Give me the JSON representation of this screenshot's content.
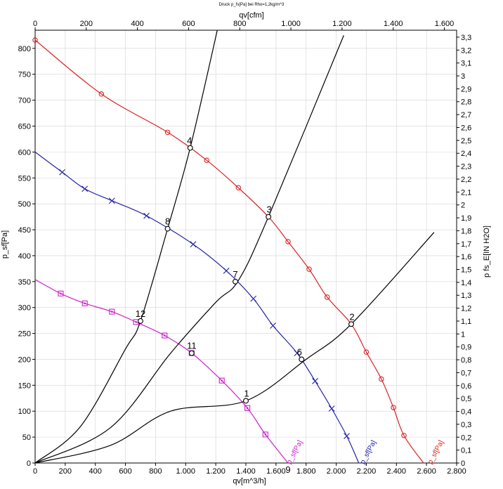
{
  "chart_data": {
    "type": "line",
    "title": "Druck p_fs[Pa] bei Rho=1,2kg/m^3",
    "x_bottom": {
      "label": "qv[m^3/h]",
      "range": [
        0,
        2800
      ],
      "ticks": [
        0,
        200,
        400,
        600,
        800,
        1000,
        1200,
        1400,
        1600,
        1800,
        2000,
        2200,
        2400,
        2600,
        2800
      ],
      "tick_labels": [
        "0",
        "200",
        "400",
        "600",
        "800",
        "1.000",
        "1.200",
        "1.400",
        "1.600",
        "1.800",
        "2.000",
        "2.200",
        "2.400",
        "2.600",
        "2.800"
      ]
    },
    "x_top": {
      "label": "qv[cfm]",
      "range": [
        0,
        1648
      ],
      "ticks": [
        0,
        200,
        400,
        600,
        800,
        1000,
        1200,
        1400,
        1600
      ],
      "tick_labels": [
        "0",
        "200",
        "400",
        "600",
        "800",
        "1.000",
        "1.200",
        "1.400",
        "1.600"
      ]
    },
    "y_left": {
      "label": "p_sf[Pa]",
      "range": [
        0,
        835
      ],
      "ticks": [
        0,
        50,
        100,
        150,
        200,
        250,
        300,
        350,
        400,
        450,
        500,
        550,
        600,
        650,
        700,
        750,
        800
      ],
      "tick_labels": [
        "0",
        "50",
        "100",
        "150",
        "200",
        "250",
        "300",
        "350",
        "400",
        "450",
        "500",
        "550",
        "600",
        "650",
        "700",
        "750",
        "800"
      ]
    },
    "y_right": {
      "label": "p fs_E[IN H2O]",
      "range": [
        0,
        3.354
      ],
      "ticks": [
        0,
        0.1,
        0.2,
        0.3,
        0.4,
        0.5,
        0.6,
        0.7,
        0.8,
        0.9,
        1.0,
        1.1,
        1.2,
        1.3,
        1.4,
        1.5,
        1.6,
        1.7,
        1.8,
        1.9,
        2.0,
        2.1,
        2.2,
        2.3,
        2.4,
        2.5,
        2.6,
        2.7,
        2.8,
        2.9,
        3.0,
        3.1,
        3.2,
        3.3
      ],
      "tick_labels": [
        "0",
        "0,1",
        "0,2",
        "0,3",
        "0,4",
        "0,5",
        "0,6",
        "0,7",
        "0,8",
        "0,9",
        "1",
        "1,1",
        "1,2",
        "1,3",
        "1,4",
        "1,5",
        "1,6",
        "1,7",
        "1,8",
        "1,9",
        "2",
        "2,1",
        "2,2",
        "2,3",
        "2,4",
        "2,5",
        "2,6",
        "2,7",
        "2,8",
        "2,9",
        "3",
        "3,1",
        "3,2",
        "3,3"
      ]
    },
    "grid": true,
    "series": [
      {
        "name": "p_sf[Pa]",
        "color": "#dd2222",
        "marker": "circle",
        "label_text": "p_sf[Pa]",
        "points": [
          [
            0,
            816
          ],
          [
            440,
            712
          ],
          [
            880,
            638
          ],
          [
            1140,
            584
          ],
          [
            1350,
            531
          ],
          [
            1550,
            475
          ],
          [
            1680,
            427
          ],
          [
            1820,
            374
          ],
          [
            1940,
            320
          ],
          [
            2100,
            268
          ],
          [
            2200,
            214
          ],
          [
            2300,
            162
          ],
          [
            2380,
            107
          ],
          [
            2450,
            53
          ],
          [
            2580,
            0
          ]
        ]
      },
      {
        "name": "p_sf[Pa]",
        "color": "#2222aa",
        "marker": "x",
        "label_text": "p_sf[Pa]",
        "points": [
          [
            0,
            600
          ],
          [
            180,
            561
          ],
          [
            330,
            529
          ],
          [
            510,
            506
          ],
          [
            740,
            477
          ],
          [
            1050,
            422
          ],
          [
            1270,
            371
          ],
          [
            1450,
            317
          ],
          [
            1580,
            265
          ],
          [
            1740,
            212
          ],
          [
            1860,
            158
          ],
          [
            1970,
            105
          ],
          [
            2070,
            52
          ],
          [
            2150,
            0
          ]
        ]
      },
      {
        "name": "p_sf[Pa]",
        "color": "#cc22cc",
        "marker": "square",
        "label_text": "p_sf[Pa]",
        "points": [
          [
            0,
            354
          ],
          [
            170,
            327
          ],
          [
            330,
            308
          ],
          [
            510,
            292
          ],
          [
            670,
            272
          ],
          [
            860,
            246
          ],
          [
            1040,
            212
          ],
          [
            1240,
            159
          ],
          [
            1410,
            106
          ],
          [
            1530,
            55
          ],
          [
            1680,
            0
          ]
        ]
      },
      {
        "name": "",
        "color": "#000000",
        "marker": "none",
        "points": [
          [
            0,
            0
          ],
          [
            500,
            34
          ],
          [
            900,
            100
          ],
          [
            1400,
            120
          ],
          [
            1800,
            200
          ],
          [
            2100,
            268
          ],
          [
            2650,
            445
          ]
        ]
      },
      {
        "name": "",
        "color": "#000000",
        "marker": "none",
        "points": [
          [
            0,
            0
          ],
          [
            500,
            68
          ],
          [
            900,
            212
          ],
          [
            1200,
            310
          ],
          [
            1350,
            352
          ],
          [
            1550,
            475
          ],
          [
            2050,
            825
          ]
        ]
      },
      {
        "name": "",
        "color": "#000000",
        "marker": "none",
        "points": [
          [
            0,
            0
          ],
          [
            300,
            70
          ],
          [
            600,
            220
          ],
          [
            700,
            274
          ],
          [
            880,
            452
          ],
          [
            1030,
            608
          ],
          [
            1210,
            835
          ]
        ]
      }
    ],
    "operating_points": [
      {
        "label": "1",
        "x": 1400,
        "y": 120
      },
      {
        "label": "2",
        "x": 2100,
        "y": 268
      },
      {
        "label": "3",
        "x": 1550,
        "y": 475
      },
      {
        "label": "4",
        "x": 1030,
        "y": 608
      },
      {
        "label": "6",
        "x": 1770,
        "y": 200
      },
      {
        "label": "7",
        "x": 1330,
        "y": 350
      },
      {
        "label": "8",
        "x": 880,
        "y": 452
      },
      {
        "label": "9",
        "x": 1680,
        "y": 0
      },
      {
        "label": "11",
        "x": 1040,
        "y": 212
      },
      {
        "label": "12",
        "x": 700,
        "y": 274
      }
    ]
  }
}
